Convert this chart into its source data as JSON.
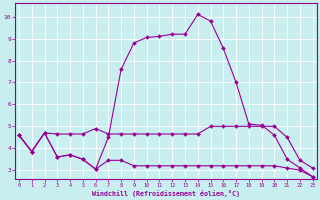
{
  "title": "",
  "xlabel": "Windchill (Refroidissement éolien,°C)",
  "bg_color": "#c8eef0",
  "grid_color": "#ffffff",
  "line_color": "#990099",
  "x_ticks": [
    0,
    1,
    2,
    3,
    4,
    5,
    6,
    7,
    8,
    9,
    10,
    11,
    12,
    13,
    14,
    15,
    16,
    17,
    18,
    19,
    20,
    21,
    22,
    23
  ],
  "y_ticks": [
    3,
    4,
    5,
    6,
    7,
    8,
    9,
    10
  ],
  "xlim": [
    -0.3,
    23.3
  ],
  "ylim": [
    2.6,
    10.6
  ],
  "line1_x": [
    0,
    1,
    2,
    3,
    4,
    5,
    6,
    7,
    8,
    9,
    10,
    11,
    12,
    13,
    14,
    15,
    16,
    17,
    18,
    19,
    20,
    21,
    22,
    23
  ],
  "line1_y": [
    4.6,
    3.85,
    4.7,
    4.65,
    4.65,
    4.65,
    4.9,
    4.65,
    4.65,
    4.65,
    4.65,
    4.65,
    4.65,
    4.65,
    4.65,
    5.0,
    5.0,
    5.0,
    5.0,
    5.0,
    5.0,
    4.5,
    3.45,
    3.1
  ],
  "line2_x": [
    0,
    1,
    2,
    3,
    4,
    5,
    6,
    7,
    8,
    9,
    10,
    11,
    12,
    13,
    14,
    15,
    16,
    17,
    18,
    19,
    20,
    21,
    22,
    23
  ],
  "line2_y": [
    4.6,
    3.85,
    4.7,
    3.6,
    3.7,
    3.5,
    3.05,
    4.5,
    7.6,
    8.8,
    9.05,
    9.1,
    9.2,
    9.2,
    10.1,
    9.8,
    8.55,
    7.0,
    5.1,
    5.05,
    4.6,
    3.5,
    3.1,
    2.7
  ],
  "line3_x": [
    0,
    1,
    2,
    3,
    4,
    5,
    6,
    7,
    8,
    9,
    10,
    11,
    12,
    13,
    14,
    15,
    16,
    17,
    18,
    19,
    20,
    21,
    22,
    23
  ],
  "line3_y": [
    4.6,
    3.85,
    4.7,
    3.6,
    3.7,
    3.5,
    3.05,
    3.45,
    3.45,
    3.2,
    3.2,
    3.2,
    3.2,
    3.2,
    3.2,
    3.2,
    3.2,
    3.2,
    3.2,
    3.2,
    3.2,
    3.1,
    3.0,
    2.7
  ]
}
